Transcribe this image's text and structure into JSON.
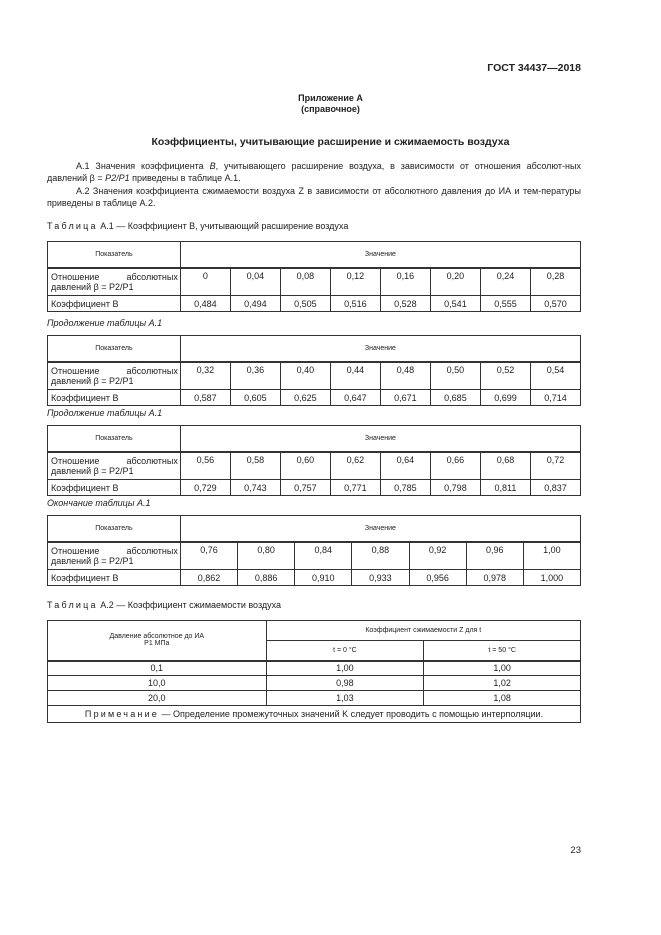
{
  "header": {
    "standard": "ГОСТ 34437—2018"
  },
  "appendix": {
    "title": "Приложение А",
    "subtitle": "(справочное)"
  },
  "section_title": "Коэффициенты, учитывающие расширение и сжимаемость воздуха",
  "paragraphs": {
    "a1_part1": "А.1 Значения коэффициента ",
    "a1_var": "B",
    "a1_part2": ", учитывающего расширение воздуха, в зависимости от отношения абсолют-ных давлений β = ",
    "a1_formula": "P2/P1",
    "a1_part3": " приведены в таблице А.1.",
    "a2": "А.2 Значения коэффициента сжимаемости воздуха Z в зависимости от абсолютного давления до ИА и тем-пературы приведены в таблице А.2."
  },
  "table1": {
    "caption_word": "Таблица",
    "caption": "А.1 — Коэффициент B, учитывающий расширение воздуха",
    "col_header": "Показатель",
    "val_header": "Значение",
    "row1_label_a": "Отношение",
    "row1_label_b": "абсолютных",
    "row1_label_c": "давлений β = P2/P1",
    "row2_label": "Коэффициент B",
    "parts": [
      {
        "note": "",
        "beta": [
          "0",
          "0,04",
          "0,08",
          "0,12",
          "0,16",
          "0,20",
          "0,24",
          "0,28"
        ],
        "B": [
          "0,484",
          "0,494",
          "0,505",
          "0,516",
          "0,528",
          "0,541",
          "0,555",
          "0,570"
        ]
      },
      {
        "note": "Продолжение таблицы А.1",
        "beta": [
          "0,32",
          "0,36",
          "0,40",
          "0,44",
          "0,48",
          "0,50",
          "0,52",
          "0,54"
        ],
        "B": [
          "0,587",
          "0,605",
          "0,625",
          "0,647",
          "0,671",
          "0,685",
          "0,699",
          "0,714"
        ]
      },
      {
        "note": "Продолжение таблицы А.1",
        "beta": [
          "0,56",
          "0,58",
          "0,60",
          "0,62",
          "0,64",
          "0,66",
          "0,68",
          "0,72"
        ],
        "B": [
          "0,729",
          "0,743",
          "0,757",
          "0,771",
          "0,785",
          "0,798",
          "0,811",
          "0,837"
        ]
      },
      {
        "note": "Окончание таблицы А.1",
        "beta": [
          "0,76",
          "0,80",
          "0,84",
          "0,88",
          "0,92",
          "0,96",
          "1,00"
        ],
        "B": [
          "0,862",
          "0,886",
          "0,910",
          "0,933",
          "0,956",
          "0,978",
          "1,000"
        ]
      }
    ]
  },
  "table2": {
    "caption_word": "Таблица",
    "caption": "А.2 — Коэффициент сжимаемости воздуха",
    "col1_header_a": "Давление абсолютное до ИА",
    "col1_header_b": "P1 МПа",
    "group_header": "Коэффициент сжимаемости Z для t",
    "sub_headers": [
      "t = 0 °C",
      "t = 50 °C"
    ],
    "rows": [
      [
        "0,1",
        "1,00",
        "1,00"
      ],
      [
        "10,0",
        "0,98",
        "1,02"
      ],
      [
        "20,0",
        "1,03",
        "1,08"
      ]
    ],
    "note_word": "Примечание",
    "note": "— Определение промежуточных значений K следует проводить с помощью интерполяции."
  },
  "page_number": "23"
}
